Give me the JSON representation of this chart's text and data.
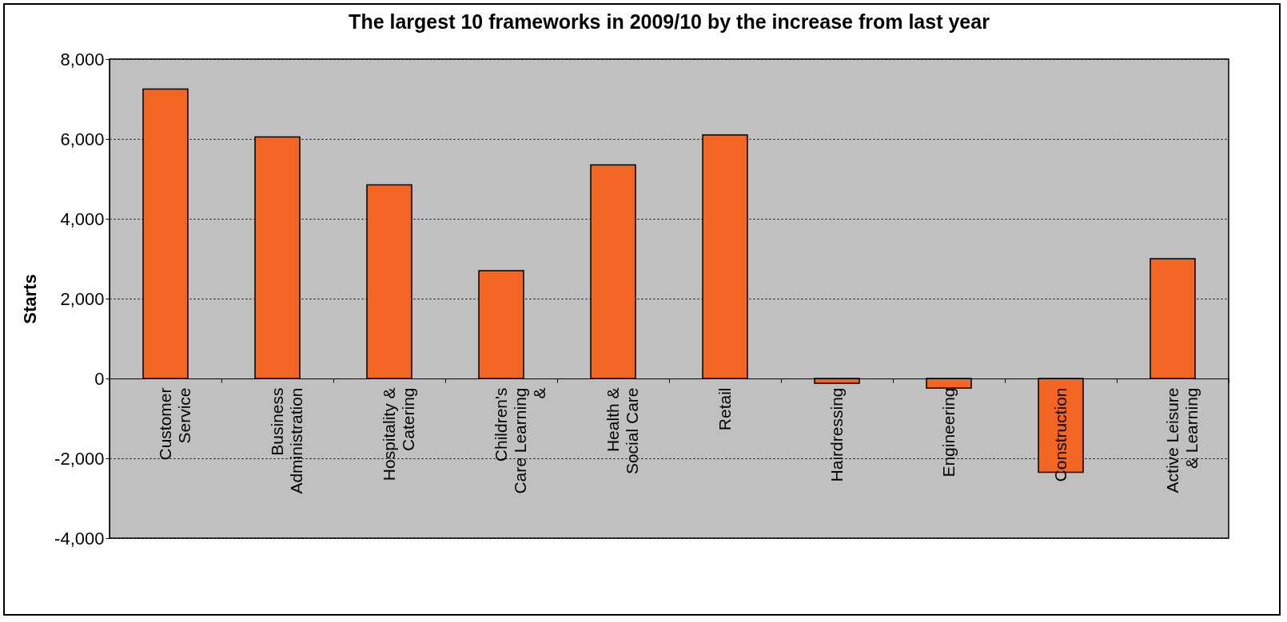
{
  "chart_data": {
    "type": "bar",
    "title": "The largest 10 frameworks in 2009/10 by the increase from last year",
    "ylabel": "Starts",
    "categories": [
      "Customer Service",
      "Business Administration",
      "Hospitality & Catering",
      "Children's Care Learning &",
      "Health & Social Care",
      "Retail",
      "Hairdressing",
      "Engineering",
      "Construction",
      "Active Leisure & Learning"
    ],
    "values": [
      7250,
      6050,
      4850,
      2700,
      5350,
      6100,
      -120,
      -240,
      -2350,
      3000
    ],
    "color": "#f26522",
    "ylim": [
      -4000,
      8000
    ],
    "yticks": [
      {
        "value": -4000,
        "label": "-4,000"
      },
      {
        "value": -2000,
        "label": "-2,000"
      },
      0,
      {
        "value": 2000,
        "label": "2,000"
      },
      {
        "value": 4000,
        "label": "4,000"
      },
      {
        "value": 6000,
        "label": "6,000"
      },
      {
        "value": 8000,
        "label": "8,000"
      }
    ],
    "grid": "y"
  }
}
